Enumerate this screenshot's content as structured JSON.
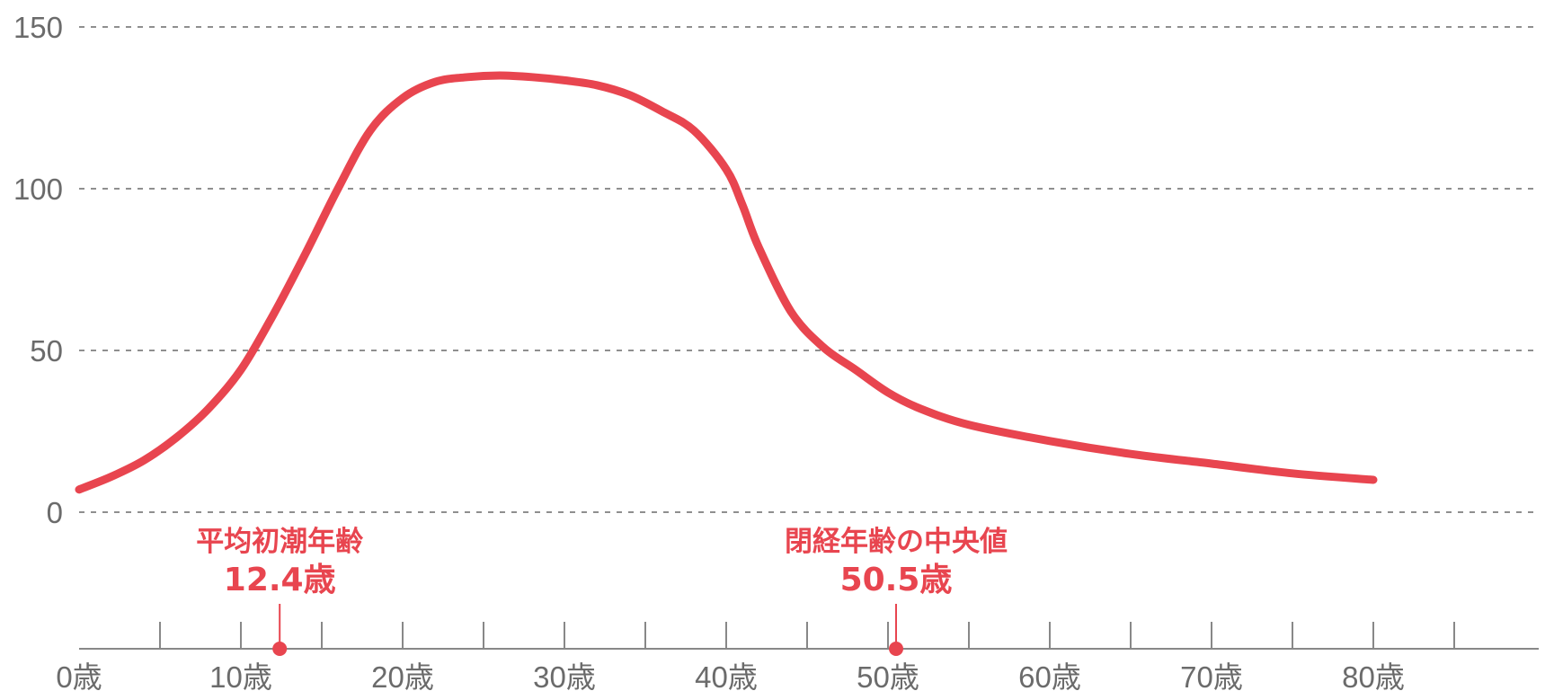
{
  "chart_data": {
    "type": "line",
    "title": "",
    "xlabel": "",
    "ylabel": "",
    "xlim": [
      0,
      88
    ],
    "ylim": [
      0,
      150
    ],
    "grid": true,
    "line_color": "#e8454f",
    "y_ticks": [
      {
        "value": 0,
        "label": "0"
      },
      {
        "value": 50,
        "label": "50"
      },
      {
        "value": 100,
        "label": "100"
      },
      {
        "value": 150,
        "label": "150"
      }
    ],
    "x_ticks": [
      {
        "value": 0,
        "label": "0歳"
      },
      {
        "value": 10,
        "label": "10歳"
      },
      {
        "value": 20,
        "label": "20歳"
      },
      {
        "value": 30,
        "label": "30歳"
      },
      {
        "value": 40,
        "label": "40歳"
      },
      {
        "value": 50,
        "label": "50歳"
      },
      {
        "value": 60,
        "label": "60歳"
      },
      {
        "value": 70,
        "label": "70歳"
      },
      {
        "value": 80,
        "label": "80歳"
      }
    ],
    "minor_ticks": [
      5,
      15,
      25,
      35,
      45,
      55,
      65,
      75,
      85
    ],
    "series": [
      {
        "x": [
          0,
          2,
          4,
          6,
          8,
          10,
          12,
          14,
          16,
          18,
          20,
          22,
          24,
          26,
          28,
          30,
          32,
          34,
          36,
          38,
          40,
          41,
          42,
          44,
          46,
          48,
          50,
          52,
          55,
          60,
          65,
          70,
          75,
          80
        ],
        "y": [
          7,
          11,
          16,
          23,
          32,
          44,
          61,
          80,
          100,
          118,
          128,
          133,
          134.5,
          135,
          134.5,
          133.5,
          132,
          129,
          124,
          118,
          106,
          95,
          82,
          62,
          51,
          44,
          37,
          32,
          27,
          22,
          18,
          15,
          12,
          10
        ]
      }
    ],
    "annotations": [
      {
        "x": 12.4,
        "title": "平均初潮年齢",
        "value": "12.4歳"
      },
      {
        "x": 50.5,
        "title": "閉経年齢の中央値",
        "value": "50.5歳"
      }
    ]
  }
}
